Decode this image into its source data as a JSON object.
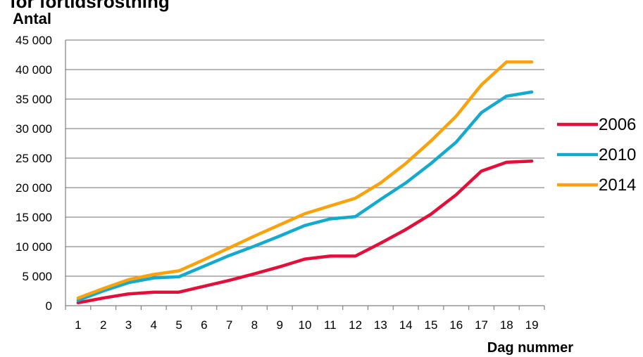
{
  "chart_data": {
    "type": "line",
    "title": "för förtidsröstning",
    "ylabel": "Antal",
    "xlabel": "Dag nummer",
    "categories": [
      "1",
      "2",
      "3",
      "4",
      "5",
      "6",
      "7",
      "8",
      "9",
      "10",
      "11",
      "12",
      "13",
      "14",
      "15",
      "16",
      "17",
      "18",
      "19"
    ],
    "y_tick_labels": [
      "0",
      "5 000",
      "10 000",
      "15 000",
      "20 000",
      "25 000",
      "30 000",
      "35 000",
      "40 000",
      "45 000"
    ],
    "y_tick_values": [
      0,
      5000,
      10000,
      15000,
      20000,
      25000,
      30000,
      35000,
      40000,
      45000
    ],
    "ylim": [
      0,
      45000
    ],
    "grid": true,
    "legend_position": "right",
    "series": [
      {
        "name": "2006",
        "color": "#e0103a",
        "values": [
          500,
          1300,
          2000,
          2300,
          2300,
          3300,
          4300,
          5400,
          6600,
          7900,
          8400,
          8400,
          10600,
          12900,
          15500,
          18800,
          22800,
          24300,
          24500
        ]
      },
      {
        "name": "2010",
        "color": "#13aacd",
        "values": [
          900,
          2500,
          3900,
          4700,
          4900,
          6700,
          8500,
          10100,
          11800,
          13600,
          14700,
          15100,
          18000,
          20800,
          24100,
          27700,
          32700,
          35500,
          36200
        ]
      },
      {
        "name": "2014",
        "color": "#f9a20b",
        "values": [
          1300,
          2900,
          4400,
          5300,
          5900,
          7800,
          9800,
          11800,
          13700,
          15600,
          16900,
          18200,
          20800,
          24100,
          27900,
          32100,
          37400,
          41300,
          41300
        ]
      }
    ]
  }
}
